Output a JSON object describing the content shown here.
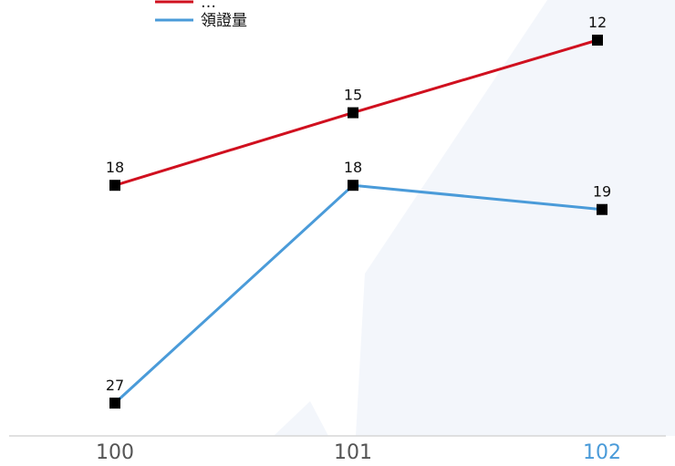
{
  "chart_data": {
    "type": "line",
    "categories": [
      "100",
      "101",
      "102"
    ],
    "ylim": [
      0,
      30
    ],
    "reverse_y": true,
    "grid": false,
    "legend_position": "top-left",
    "series": [
      {
        "name": "",
        "legend_text": "…",
        "values": [
          18,
          15,
          12
        ],
        "labels": [
          "18",
          "15",
          "12"
        ],
        "color": "#d0101f"
      },
      {
        "name": "領證量",
        "legend_text": "領證量",
        "values": [
          27,
          18,
          19
        ],
        "labels": [
          "27",
          "18",
          "19"
        ],
        "color": "#4a9bd9"
      }
    ],
    "highlighted_category": "102",
    "tick_color": "#555555",
    "highlight_color": "#4a9bd9",
    "marker_color": "#000000",
    "background_shape_color": "#f3f6fb"
  }
}
